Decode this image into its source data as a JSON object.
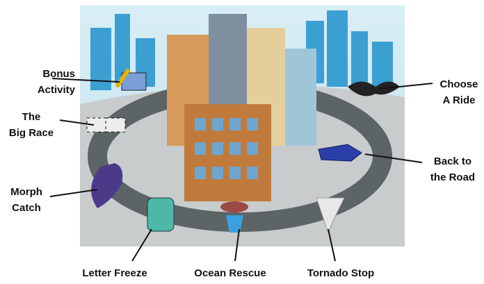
{
  "callouts": [
    {
      "label": [
        "Bonus",
        "Activity"
      ]
    },
    {
      "label": [
        "The",
        "Big Race"
      ]
    },
    {
      "label": [
        "Morph",
        "Catch"
      ]
    },
    {
      "label": [
        "Letter Freeze"
      ]
    },
    {
      "label": [
        "Ocean Rescue"
      ]
    },
    {
      "label": [
        "Tornado Stop"
      ]
    },
    {
      "label": [
        "Choose",
        "A Ride"
      ]
    },
    {
      "label": [
        "Back to",
        "the Road"
      ]
    }
  ]
}
